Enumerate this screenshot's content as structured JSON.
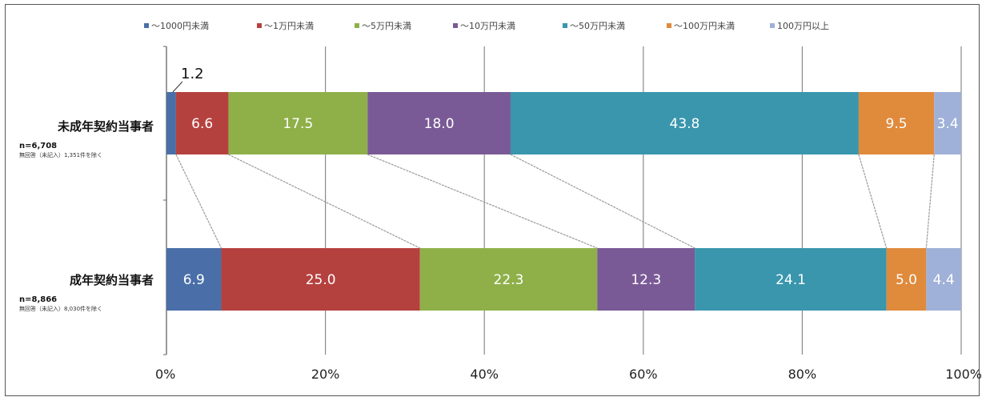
{
  "chart_data": {
    "type": "bar",
    "orientation": "horizontal",
    "stacked": "percent",
    "categories": [
      {
        "title": "未成年契約当事者",
        "n": "n=6,708",
        "note": "無回答（未記入）1,351件を除く"
      },
      {
        "title": "成年契約当事者",
        "n": "n=8,866",
        "note": "無回答（未記入）8,030件を除く"
      }
    ],
    "series": [
      {
        "name": "～1000円未満",
        "color": "#4a6fa8",
        "values": [
          1.2,
          6.9
        ]
      },
      {
        "name": "～1万円未満",
        "color": "#b5413f",
        "values": [
          6.6,
          25.0
        ]
      },
      {
        "name": "～5万円未満",
        "color": "#8fb049",
        "values": [
          17.5,
          22.3
        ]
      },
      {
        "name": "～10万円未満",
        "color": "#7a5a96",
        "values": [
          18.0,
          12.3
        ]
      },
      {
        "name": "～50万円未満",
        "color": "#3996ad",
        "values": [
          43.8,
          24.1
        ]
      },
      {
        "name": "～100万円未満",
        "color": "#e08a3c",
        "values": [
          9.5,
          5.0
        ]
      },
      {
        "name": "100万円以上",
        "color": "#9fb1d8",
        "values": [
          3.4,
          4.4
        ]
      }
    ],
    "xlim": [
      0,
      100
    ],
    "x_ticks": [
      "0%",
      "20%",
      "40%",
      "60%",
      "80%",
      "100%"
    ],
    "grid": true,
    "legend_position": "top",
    "callouts": [
      {
        "text": "1.2"
      }
    ]
  }
}
